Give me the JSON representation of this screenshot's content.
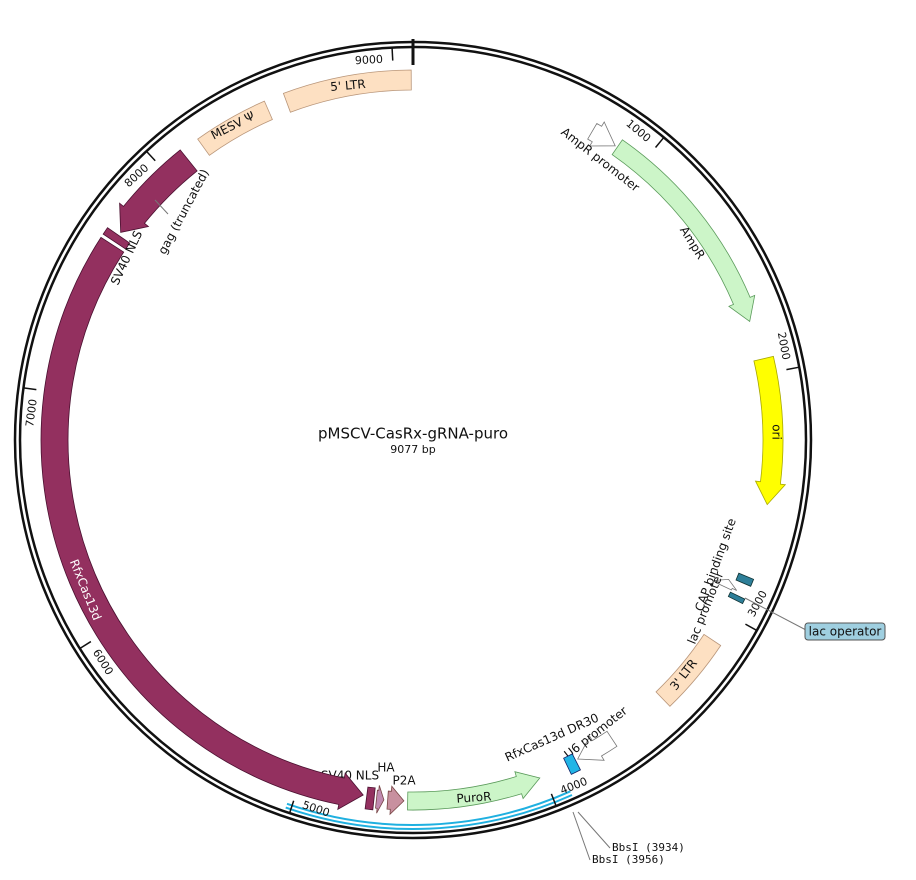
{
  "map": {
    "title": "pMSCV-CasRx-gRNA-puro",
    "length": "9077 bp"
  },
  "ticks": [
    "1000",
    "2000",
    "3000",
    "4000",
    "5000",
    "6000",
    "7000",
    "8000",
    "9000"
  ],
  "features": [
    {
      "label": "AmpR promoter"
    },
    {
      "label": "AmpR"
    },
    {
      "label": "ori"
    },
    {
      "label": "CAP binding site"
    },
    {
      "label": "lac promoter"
    },
    {
      "label": "lac operator"
    },
    {
      "label": "3' LTR"
    },
    {
      "label": "U6 promoter"
    },
    {
      "label": "RfxCas13d DR30"
    },
    {
      "label": "PuroR"
    },
    {
      "label": "P2A"
    },
    {
      "label": "HA"
    },
    {
      "label": "SV40 NLS"
    },
    {
      "label": "RfxCas13d"
    },
    {
      "label": "SV40 NLS"
    },
    {
      "label": "gag (truncated)"
    },
    {
      "label": "MESV Ψ"
    },
    {
      "label": "5' LTR"
    }
  ],
  "sites": [
    {
      "label": "BbsI (3934)"
    },
    {
      "label": "BbsI (3956)"
    }
  ]
}
